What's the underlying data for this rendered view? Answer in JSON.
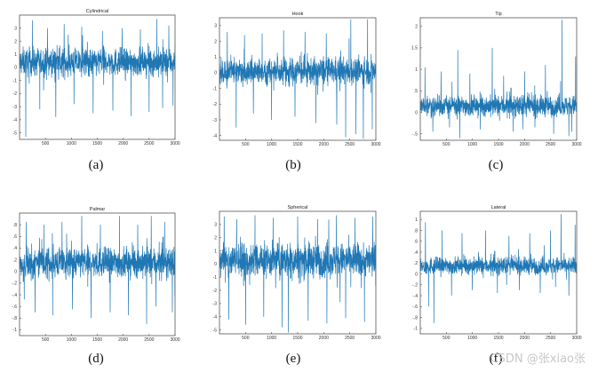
{
  "chart_data": [
    {
      "type": "line",
      "title": "Cylindrical",
      "caption": "(a)",
      "xlim": [
        0,
        3000
      ],
      "ylim": [
        -5.5,
        4
      ],
      "xticks": [
        500,
        1000,
        1500,
        2000,
        2500,
        3000
      ],
      "yticks": [
        -5,
        -4,
        -3,
        -2,
        -1,
        0,
        1,
        2,
        3
      ],
      "baseline": 0.4,
      "spread": 0.75,
      "spikes": [
        {
          "x": 120,
          "y": -5.3
        },
        {
          "x": 250,
          "y": 3.6
        },
        {
          "x": 390,
          "y": -3.2
        },
        {
          "x": 540,
          "y": 3.0
        },
        {
          "x": 700,
          "y": -3.8
        },
        {
          "x": 860,
          "y": 3.3
        },
        {
          "x": 1050,
          "y": -2.8
        },
        {
          "x": 1200,
          "y": 3.1
        },
        {
          "x": 1420,
          "y": -3.5
        },
        {
          "x": 1600,
          "y": 2.8
        },
        {
          "x": 1800,
          "y": -3.3
        },
        {
          "x": 1980,
          "y": 3.0
        },
        {
          "x": 2150,
          "y": -3.7
        },
        {
          "x": 2330,
          "y": 2.9
        },
        {
          "x": 2500,
          "y": -3.4
        },
        {
          "x": 2650,
          "y": 3.7
        },
        {
          "x": 2760,
          "y": -3.1
        },
        {
          "x": 2880,
          "y": 3.2
        },
        {
          "x": 2960,
          "y": -2.9
        }
      ]
    },
    {
      "type": "line",
      "title": "Hook",
      "caption": "(b)",
      "xlim": [
        0,
        3000
      ],
      "ylim": [
        -4.3,
        3.5
      ],
      "xticks": [
        500,
        1000,
        1500,
        2000,
        2500,
        3000
      ],
      "yticks": [
        -4,
        -3,
        -2,
        -1,
        0,
        1,
        2,
        3
      ],
      "baseline": 0.1,
      "spread": 0.6,
      "spikes": [
        {
          "x": 150,
          "y": 2.6
        },
        {
          "x": 320,
          "y": -3.5
        },
        {
          "x": 480,
          "y": 2.4
        },
        {
          "x": 650,
          "y": -2.6
        },
        {
          "x": 820,
          "y": 2.5
        },
        {
          "x": 1000,
          "y": -3.0
        },
        {
          "x": 1230,
          "y": 2.7
        },
        {
          "x": 1450,
          "y": -2.8
        },
        {
          "x": 1640,
          "y": 2.6
        },
        {
          "x": 1850,
          "y": -3.2
        },
        {
          "x": 2050,
          "y": 2.5
        },
        {
          "x": 2250,
          "y": -3.3
        },
        {
          "x": 2420,
          "y": -4.1
        },
        {
          "x": 2520,
          "y": 3.4
        },
        {
          "x": 2620,
          "y": -3.9
        },
        {
          "x": 2760,
          "y": -4.2
        },
        {
          "x": 2840,
          "y": 3.4
        },
        {
          "x": 2930,
          "y": -3.6
        }
      ]
    },
    {
      "type": "line",
      "title": "Tip",
      "caption": "(c)",
      "xlim": [
        0,
        3000
      ],
      "ylim": [
        -0.65,
        2.2
      ],
      "xticks": [
        500,
        1000,
        1500,
        2000,
        2500,
        3000
      ],
      "yticks": [
        -0.5,
        0,
        0.5,
        1,
        1.5,
        2
      ],
      "baseline": 0.15,
      "spread": 0.17,
      "spikes": [
        {
          "x": 90,
          "y": 1.05
        },
        {
          "x": 240,
          "y": -0.45
        },
        {
          "x": 400,
          "y": 0.95
        },
        {
          "x": 560,
          "y": -0.35
        },
        {
          "x": 720,
          "y": 1.45
        },
        {
          "x": 760,
          "y": -0.6
        },
        {
          "x": 950,
          "y": 0.9
        },
        {
          "x": 1150,
          "y": -0.4
        },
        {
          "x": 1380,
          "y": 1.5
        },
        {
          "x": 1600,
          "y": 0.85
        },
        {
          "x": 1780,
          "y": -0.45
        },
        {
          "x": 2000,
          "y": 0.95
        },
        {
          "x": 2200,
          "y": -0.35
        },
        {
          "x": 2400,
          "y": 1.1
        },
        {
          "x": 2560,
          "y": -0.5
        },
        {
          "x": 2720,
          "y": 2.15
        },
        {
          "x": 2850,
          "y": -0.55
        },
        {
          "x": 2980,
          "y": 1.3
        }
      ]
    },
    {
      "type": "line",
      "title": "Palmar",
      "caption": "(d)",
      "xlim": [
        0,
        3000
      ],
      "ylim": [
        -1.1,
        1.0
      ],
      "xticks": [
        500,
        1000,
        1500,
        2000,
        2500,
        3000
      ],
      "yticks": [
        -1,
        -0.8,
        -0.6,
        -0.4,
        -0.2,
        0,
        0.2,
        0.4,
        0.6,
        0.8
      ],
      "baseline": 0.15,
      "spread": 0.18,
      "spikes": [
        {
          "x": 130,
          "y": 0.85
        },
        {
          "x": 300,
          "y": -0.7
        },
        {
          "x": 470,
          "y": 0.8
        },
        {
          "x": 640,
          "y": -0.75
        },
        {
          "x": 820,
          "y": 0.85
        },
        {
          "x": 1020,
          "y": -0.65
        },
        {
          "x": 1200,
          "y": 0.95
        },
        {
          "x": 1380,
          "y": -0.8
        },
        {
          "x": 1560,
          "y": 0.8
        },
        {
          "x": 1750,
          "y": -0.7
        },
        {
          "x": 1930,
          "y": 0.95
        },
        {
          "x": 2100,
          "y": -0.75
        },
        {
          "x": 2280,
          "y": 0.8
        },
        {
          "x": 2450,
          "y": -0.9
        },
        {
          "x": 2540,
          "y": 0.95
        },
        {
          "x": 2630,
          "y": -0.6
        },
        {
          "x": 2800,
          "y": 0.85
        },
        {
          "x": 2950,
          "y": -0.7
        }
      ]
    },
    {
      "type": "line",
      "title": "Spherical",
      "caption": "(e)",
      "xlim": [
        0,
        3000
      ],
      "ylim": [
        -5.3,
        4
      ],
      "xticks": [
        500,
        1000,
        1500,
        2000,
        2500,
        3000
      ],
      "yticks": [
        -5,
        -4,
        -3,
        -2,
        -1,
        0,
        1,
        2,
        3
      ],
      "baseline": 0.3,
      "spread": 0.9,
      "spikes": [
        {
          "x": 90,
          "y": 3.6
        },
        {
          "x": 180,
          "y": -4.2
        },
        {
          "x": 330,
          "y": 3.4
        },
        {
          "x": 500,
          "y": -4.6
        },
        {
          "x": 680,
          "y": 3.7
        },
        {
          "x": 850,
          "y": -4.0
        },
        {
          "x": 1030,
          "y": 3.5
        },
        {
          "x": 1200,
          "y": -4.8
        },
        {
          "x": 1320,
          "y": -5.2
        },
        {
          "x": 1500,
          "y": 3.6
        },
        {
          "x": 1700,
          "y": -4.3
        },
        {
          "x": 1880,
          "y": 3.4
        },
        {
          "x": 2060,
          "y": -4.5
        },
        {
          "x": 2240,
          "y": 3.7
        },
        {
          "x": 2420,
          "y": -4.1
        },
        {
          "x": 2600,
          "y": 3.5
        },
        {
          "x": 2780,
          "y": -4.4
        },
        {
          "x": 2940,
          "y": 3.6
        }
      ]
    },
    {
      "type": "line",
      "title": "Lateral",
      "caption": "(f)",
      "xlim": [
        0,
        3000
      ],
      "ylim": [
        -1.1,
        1.15
      ],
      "xticks": [
        500,
        1000,
        1500,
        2000,
        2500,
        3000
      ],
      "yticks": [
        -1,
        -0.8,
        -0.6,
        -0.4,
        -0.2,
        0,
        0.2,
        0.4,
        0.6,
        0.8,
        1
      ],
      "baseline": 0.15,
      "spread": 0.11,
      "spikes": [
        {
          "x": 100,
          "y": 0.95
        },
        {
          "x": 160,
          "y": -0.6
        },
        {
          "x": 260,
          "y": -0.9
        },
        {
          "x": 420,
          "y": 0.8
        },
        {
          "x": 600,
          "y": -0.4
        },
        {
          "x": 800,
          "y": 0.75
        },
        {
          "x": 1000,
          "y": -0.3
        },
        {
          "x": 1250,
          "y": 0.8
        },
        {
          "x": 1480,
          "y": -0.35
        },
        {
          "x": 1700,
          "y": 0.7
        },
        {
          "x": 1900,
          "y": -0.3
        },
        {
          "x": 2100,
          "y": 0.75
        },
        {
          "x": 2300,
          "y": -0.35
        },
        {
          "x": 2500,
          "y": 0.8
        },
        {
          "x": 2700,
          "y": 1.1
        },
        {
          "x": 2850,
          "y": -0.4
        },
        {
          "x": 2970,
          "y": 0.9
        }
      ]
    }
  ],
  "colors": {
    "line": "#1f77b4",
    "axis": "#555555"
  },
  "watermark": "CSDN @张xiao张"
}
